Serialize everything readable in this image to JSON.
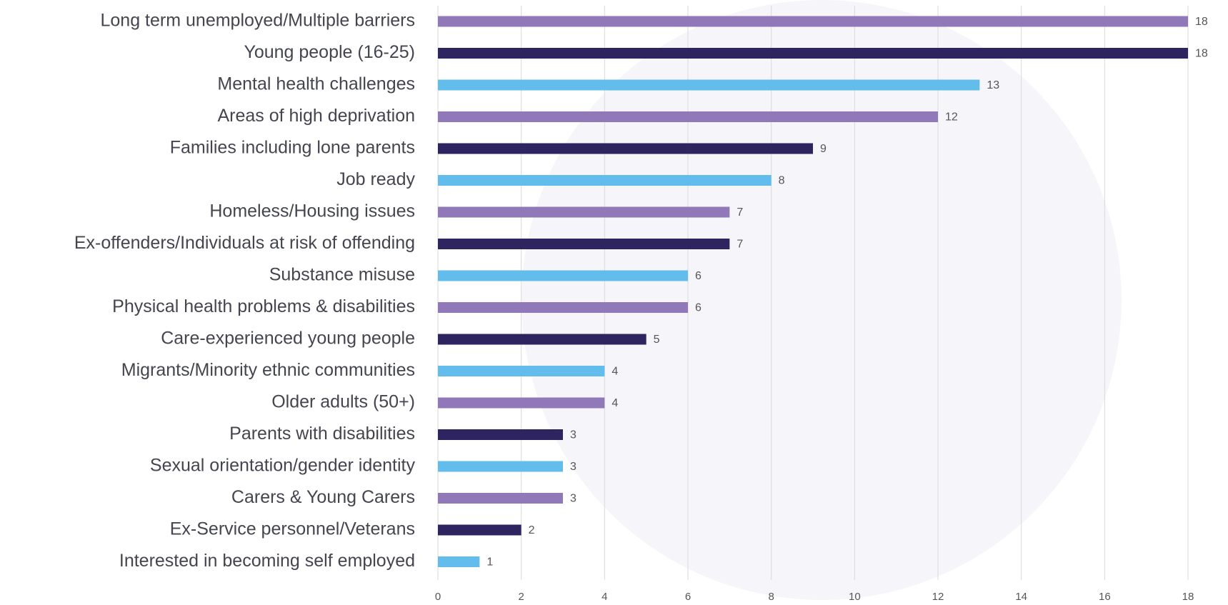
{
  "chart_data": {
    "type": "barh",
    "categories": [
      "Long term unemployed/Multiple barriers",
      "Young people (16-25)",
      "Mental health challenges",
      "Areas of high deprivation",
      "Families including lone parents",
      "Job ready",
      "Homeless/Housing issues",
      "Ex-offenders/Individuals at risk of offending",
      "Substance misuse",
      "Physical health problems & disabilities",
      "Care-experienced young people",
      "Migrants/Minority ethnic communities",
      "Older adults (50+)",
      "Parents with disabilities",
      "Sexual orientation/gender identity",
      "Carers & Young Carers",
      "Ex-Service personnel/Veterans",
      "Interested in becoming self employed"
    ],
    "values": [
      18,
      18,
      13,
      12,
      9,
      8,
      7,
      7,
      6,
      6,
      5,
      4,
      4,
      3,
      3,
      3,
      2,
      1
    ],
    "colors": [
      "#9178b8",
      "#2e2460",
      "#63bdec",
      "#9178b8",
      "#2e2460",
      "#63bdec",
      "#9178b8",
      "#2e2460",
      "#63bdec",
      "#9178b8",
      "#2e2460",
      "#63bdec",
      "#9178b8",
      "#2e2460",
      "#63bdec",
      "#9178b8",
      "#2e2460",
      "#63bdec"
    ],
    "xlim": [
      0,
      18
    ],
    "xticks": [
      0,
      2,
      4,
      6,
      8,
      10,
      12,
      14,
      16,
      18
    ],
    "grid": true
  }
}
